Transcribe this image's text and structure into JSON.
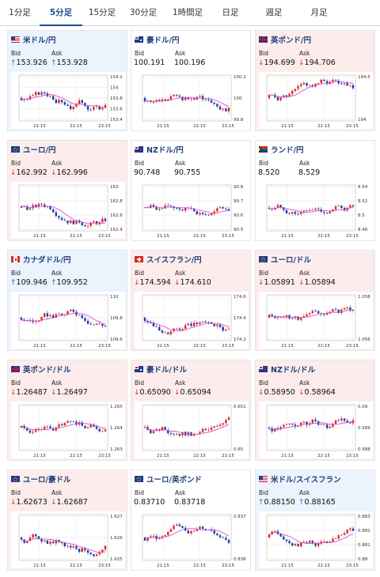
{
  "tabs": [
    "1分足",
    "5分足",
    "15分足",
    "30分足",
    "1時間足",
    "日足",
    "週足",
    "月足"
  ],
  "active_tab": 1,
  "labels": {
    "bid": "Bid",
    "ask": "Ask"
  },
  "x_ticks": [
    "21:15",
    "22:15",
    "23:15"
  ],
  "cards": [
    {
      "pair": "米ドル/円",
      "flag": "us-flag-icon",
      "bg": "blue",
      "dir": "up",
      "bid": "153.926",
      "ask": "153.928",
      "yticks": [
        "154.2",
        "154",
        "153.8",
        "153.6",
        "153.4"
      ]
    },
    {
      "pair": "豪ドル/円",
      "flag": "au-flag-icon",
      "bg": "none",
      "dir": "none",
      "bid": "100.191",
      "ask": "100.196",
      "yticks": [
        "100.2",
        "100",
        "99.8"
      ]
    },
    {
      "pair": "英ポンド/円",
      "flag": "uk-flag-icon",
      "bg": "pink",
      "dir": "down",
      "bid": "194.699",
      "ask": "194.706",
      "yticks": [
        "194.5",
        "194"
      ]
    },
    {
      "pair": "ユーロ/円",
      "flag": "eu-flag-icon",
      "bg": "pink",
      "dir": "down",
      "bid": "162.992",
      "ask": "162.996",
      "yticks": [
        "163",
        "162.8",
        "162.6",
        "162.4"
      ]
    },
    {
      "pair": "NZドル/円",
      "flag": "nz-flag-icon",
      "bg": "none",
      "dir": "none",
      "bid": "90.748",
      "ask": "90.755",
      "yticks": [
        "90.8",
        "90.7",
        "90.6",
        "90.5"
      ]
    },
    {
      "pair": "ランド/円",
      "flag": "za-flag-icon",
      "bg": "none",
      "dir": "none",
      "bid": "8.520",
      "ask": "8.529",
      "yticks": [
        "8.54",
        "8.52",
        "8.5",
        "8.48"
      ]
    },
    {
      "pair": "カナダドル/円",
      "flag": "ca-flag-icon",
      "bg": "blue",
      "dir": "up",
      "bid": "109.946",
      "ask": "109.952",
      "yticks": [
        "110",
        "109.8",
        "109.6"
      ]
    },
    {
      "pair": "スイスフラン/円",
      "flag": "ch-flag-icon",
      "bg": "pink",
      "dir": "down",
      "bid": "174.594",
      "ask": "174.610",
      "yticks": [
        "174.6",
        "174.4",
        "174.2"
      ]
    },
    {
      "pair": "ユーロ/ドル",
      "flag": "eu-flag-icon",
      "bg": "pink",
      "dir": "down",
      "bid": "1.05891",
      "ask": "1.05894",
      "yticks": [
        "1.058",
        "1.056"
      ]
    },
    {
      "pair": "英ポンド/ドル",
      "flag": "uk-flag-icon",
      "bg": "pink",
      "dir": "down",
      "bid": "1.26487",
      "ask": "1.26497",
      "yticks": [
        "1.265",
        "1.264",
        "1.263"
      ]
    },
    {
      "pair": "豪ドル/ドル",
      "flag": "au-flag-icon",
      "bg": "pink",
      "dir": "down",
      "bid": "0.65090",
      "ask": "0.65094",
      "yticks": [
        "0.651",
        "0.65"
      ]
    },
    {
      "pair": "NZドル/ドル",
      "flag": "nz-flag-icon",
      "bg": "pink",
      "dir": "down",
      "bid": "0.58950",
      "ask": "0.58964",
      "yticks": [
        "0.59",
        "0.589",
        "0.588"
      ]
    },
    {
      "pair": "ユーロ/豪ドル",
      "flag": "eu-flag-icon",
      "bg": "pink",
      "dir": "down",
      "bid": "1.62673",
      "ask": "1.62687",
      "yticks": [
        "1.627",
        "1.626",
        "1.625"
      ]
    },
    {
      "pair": "ユーロ/英ポンド",
      "flag": "eu-flag-icon",
      "bg": "none",
      "dir": "none",
      "bid": "0.83710",
      "ask": "0.83718",
      "yticks": [
        "0.837",
        "0.836"
      ]
    },
    {
      "pair": "米ドル/スイスフラン",
      "flag": "us-flag-icon",
      "bg": "blue",
      "dir": "up",
      "bid": "0.88150",
      "ask": "0.88165",
      "yticks": [
        "0.883",
        "0.882",
        "0.881",
        "0.88"
      ]
    }
  ]
}
